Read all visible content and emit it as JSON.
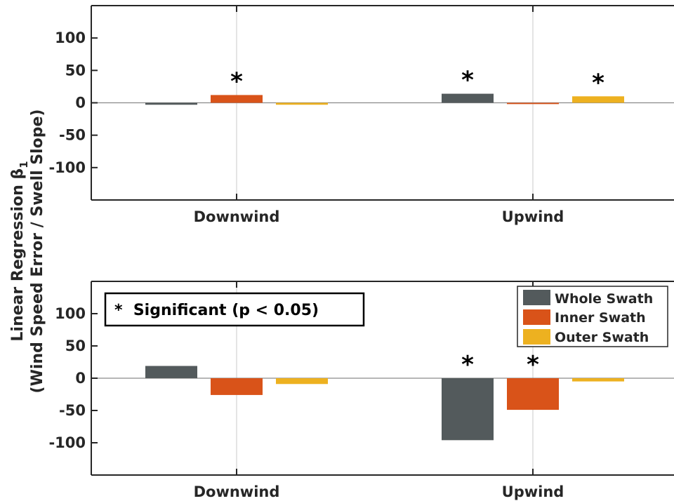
{
  "ylabel_line1": "Linear Regression β",
  "ylabel_sub": "1",
  "ylabel_line2": "(Wind Speed Error / Swell Slope)",
  "significance_note": "*  Significant (p < 0.05)",
  "star_symbol": "*",
  "colors": {
    "Whole Swath": "#535a5c",
    "Inner Swath": "#d95319",
    "Outer Swath": "#edb120"
  },
  "chart_data": [
    {
      "type": "bar",
      "categories": [
        "Downwind",
        "Upwind"
      ],
      "ylim": [
        -150,
        150
      ],
      "yticks": [
        -100,
        -50,
        0,
        50,
        100
      ],
      "grid": true,
      "legend": false,
      "series": [
        {
          "name": "Whole Swath",
          "values": [
            -3,
            14
          ],
          "significant": [
            false,
            true
          ]
        },
        {
          "name": "Inner Swath",
          "values": [
            12,
            -2
          ],
          "significant": [
            true,
            false
          ]
        },
        {
          "name": "Outer Swath",
          "values": [
            -3,
            10
          ],
          "significant": [
            false,
            true
          ]
        }
      ]
    },
    {
      "type": "bar",
      "categories": [
        "Downwind",
        "Upwind"
      ],
      "ylim": [
        -150,
        150
      ],
      "yticks": [
        -100,
        -50,
        0,
        50,
        100
      ],
      "grid": true,
      "legend": true,
      "legend_position": "top-right",
      "series": [
        {
          "name": "Whole Swath",
          "values": [
            19,
            -96
          ],
          "significant": [
            false,
            true
          ]
        },
        {
          "name": "Inner Swath",
          "values": [
            -26,
            -49
          ],
          "significant": [
            false,
            true
          ]
        },
        {
          "name": "Outer Swath",
          "values": [
            -9,
            -5
          ],
          "significant": [
            false,
            false
          ]
        }
      ]
    }
  ]
}
